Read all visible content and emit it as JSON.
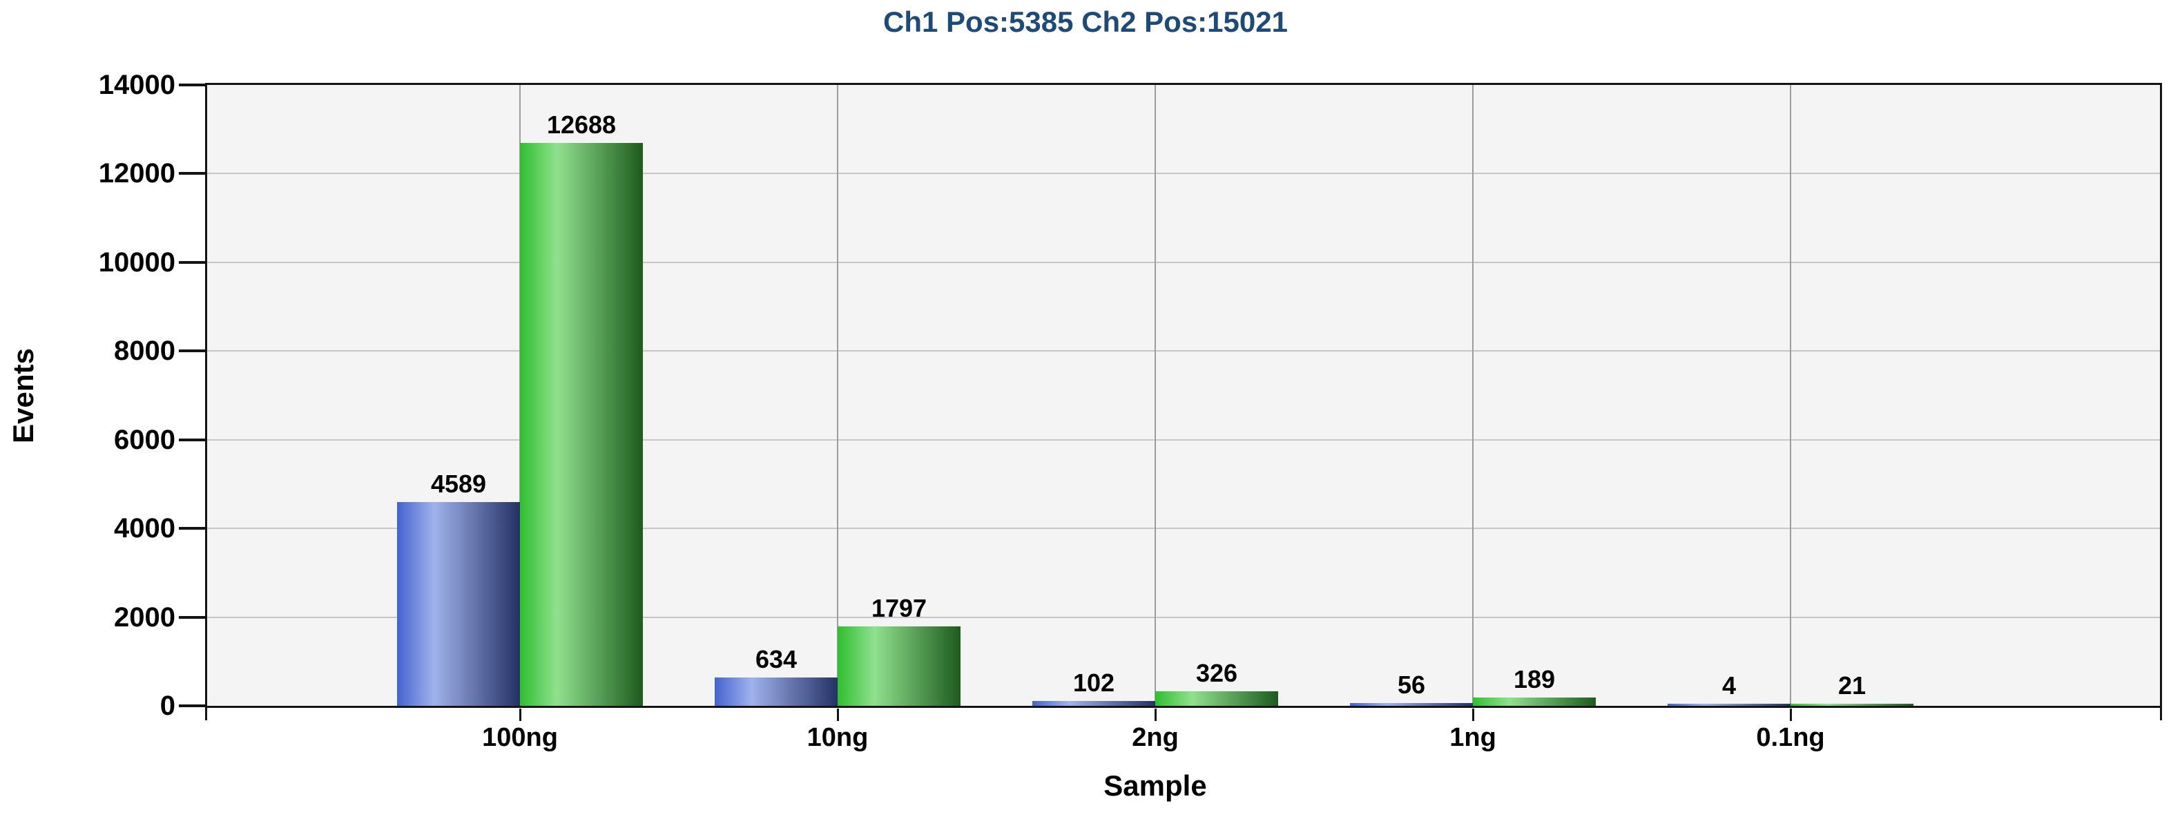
{
  "title": {
    "text": "Ch1 Pos:5385 Ch2 Pos:15021",
    "color": "#1e4a78"
  },
  "chart_data": {
    "type": "bar",
    "title": "Ch1 Pos:5385 Ch2 Pos:15021",
    "categories": [
      "100ng",
      "10ng",
      "2ng",
      "1ng",
      "0.1ng"
    ],
    "series": [
      {
        "name": "Ch1 Pos",
        "total": 5385,
        "values": [
          4589,
          634,
          102,
          56,
          4
        ],
        "gradient": [
          "#4463cf",
          "#a0b2ec",
          "#243164"
        ]
      },
      {
        "name": "Ch2 Pos",
        "total": 15021,
        "values": [
          12688,
          1797,
          326,
          189,
          21
        ],
        "gradient": [
          "#2fbf2f",
          "#90e08e",
          "#1d5b1e"
        ]
      }
    ],
    "bar_value_labels_shown": true,
    "xlabel": "Sample",
    "ylabel": "Events",
    "ylim": [
      0,
      14000
    ],
    "ytick_step": 2000,
    "yticks": [
      0,
      2000,
      4000,
      6000,
      8000,
      10000,
      12000,
      14000
    ],
    "grid": true,
    "legend_position": "none",
    "colors": {
      "plot_background": "#f4f4f4",
      "outer_background": "#ffffff",
      "gridline_horizontal": "#c6c6c6",
      "gridline_vertical": "#9c9c9c",
      "axis_frame": "#141414",
      "text": "#000000",
      "title_text": "#1e4a78"
    }
  }
}
